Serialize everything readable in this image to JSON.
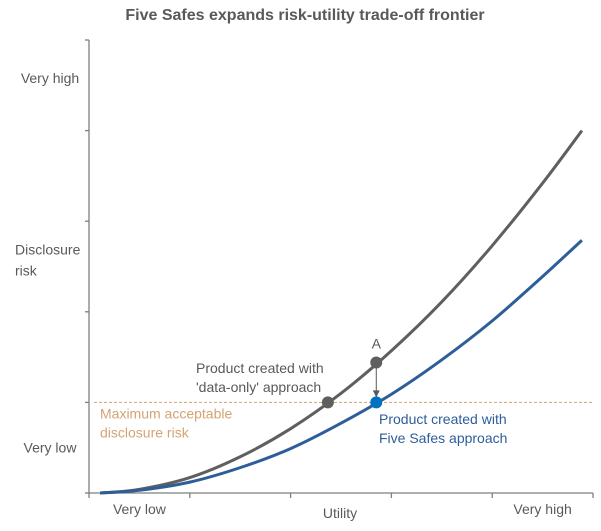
{
  "chart_data": {
    "type": "line",
    "title": "Five Safes expands risk-utility trade-off frontier",
    "xlabel": "Utility",
    "ylabel": "Disclosure risk",
    "x_tick_labels": [
      {
        "label": "Very low",
        "at": 0.5
      },
      {
        "label": "Very high",
        "at": 4.5
      }
    ],
    "y_tick_labels": [
      {
        "label": "Very high",
        "at": 4.58
      },
      {
        "label": "Very low",
        "at": 0.5
      }
    ],
    "xlim": [
      0,
      5
    ],
    "ylim": [
      0,
      5
    ],
    "grid": false,
    "colors": {
      "data_only": "#5f5f5f",
      "five_safes": "#2e5e9a",
      "five_safes_point": "#0070c0",
      "threshold": "#d4a373",
      "axis": "#7f7f7f"
    },
    "series": [
      {
        "key": "data_only",
        "x": [
          0.11,
          0.5,
          1,
          1.5,
          2,
          2.5,
          3,
          3.5,
          4,
          4.5,
          4.89
        ],
        "y": [
          0,
          0.04,
          0.17,
          0.4,
          0.71,
          1.1,
          1.57,
          2.11,
          2.73,
          3.42,
          4.0
        ]
      },
      {
        "key": "five_safes",
        "x": [
          0.11,
          0.5,
          1,
          1.5,
          2,
          2.5,
          3,
          3.5,
          4,
          4.5,
          4.89
        ],
        "y": [
          0,
          0.03,
          0.12,
          0.28,
          0.49,
          0.77,
          1.09,
          1.47,
          1.9,
          2.39,
          2.79
        ]
      }
    ],
    "threshold": {
      "y": 1.0,
      "label_lines": [
        "Maximum acceptable",
        "disclosure risk"
      ]
    },
    "points": [
      {
        "key": "data_only_at_threshold",
        "x": 2.37,
        "y": 1.0,
        "series": "data_only"
      },
      {
        "key": "A",
        "x": 2.85,
        "y": 1.44,
        "series": "data_only",
        "label": "A"
      },
      {
        "key": "five_safes_product",
        "x": 2.85,
        "y": 1.0,
        "series": "five_safes"
      }
    ],
    "annotations": {
      "data_only": [
        "Product created with",
        "'data-only' approach"
      ],
      "five_safes": [
        "Product created with",
        "Five Safes approach"
      ]
    }
  }
}
